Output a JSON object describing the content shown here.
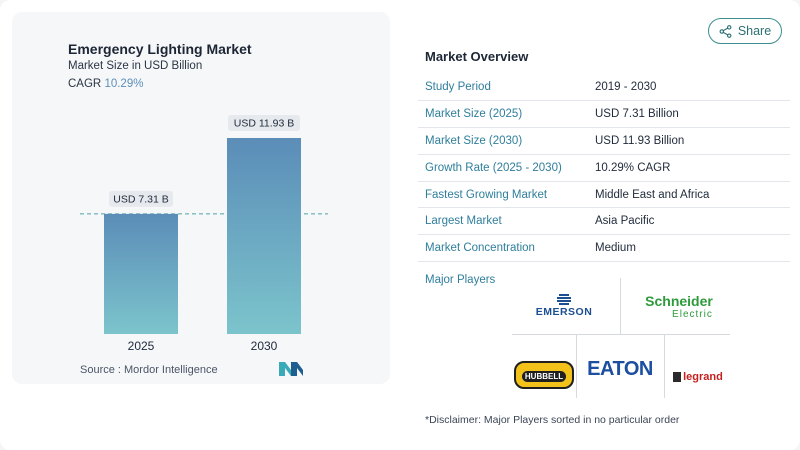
{
  "chart_data": {
    "type": "bar",
    "title": "Emergency Lighting Market",
    "subtitle": "Market Size in USD Billion",
    "cagr_label": "CAGR",
    "cagr_value": "10.29%",
    "categories": [
      "2025",
      "2030"
    ],
    "values": [
      7.31,
      11.93
    ],
    "data_labels": [
      "USD 7.31 B",
      "USD 11.93 B"
    ],
    "ylim": [
      0,
      12.5
    ],
    "grid": false,
    "colors": {
      "bar_top": "#5b8db8",
      "bar_bottom": "#7cc4cc",
      "label_bg": "#e6e9ed",
      "ref_line": "#4fa3a3"
    }
  },
  "source": "Source : Mordor Intelligence",
  "share_label": "Share",
  "overview": {
    "title": "Market Overview",
    "rows": [
      {
        "key": "Study Period",
        "value": "2019 - 2030"
      },
      {
        "key": "Market Size (2025)",
        "value": "USD 7.31 Billion"
      },
      {
        "key": "Market Size (2030)",
        "value": "USD 11.93 Billion"
      },
      {
        "key": "Growth Rate (2025 - 2030)",
        "value": "10.29% CAGR"
      },
      {
        "key": "Fastest Growing Market",
        "value": "Middle East and Africa"
      },
      {
        "key": "Largest Market",
        "value": "Asia Pacific"
      },
      {
        "key": "Market Concentration",
        "value": "Medium"
      }
    ]
  },
  "players": {
    "title": "Major Players",
    "emerson": "EMERSON",
    "schneider": "Schneider",
    "schneider_sub": "Electric",
    "hubbell": "HUBBELL",
    "eaton": "EATON",
    "legrand": "legrand"
  },
  "disclaimer": "*Disclaimer: Major Players sorted in no particular order"
}
